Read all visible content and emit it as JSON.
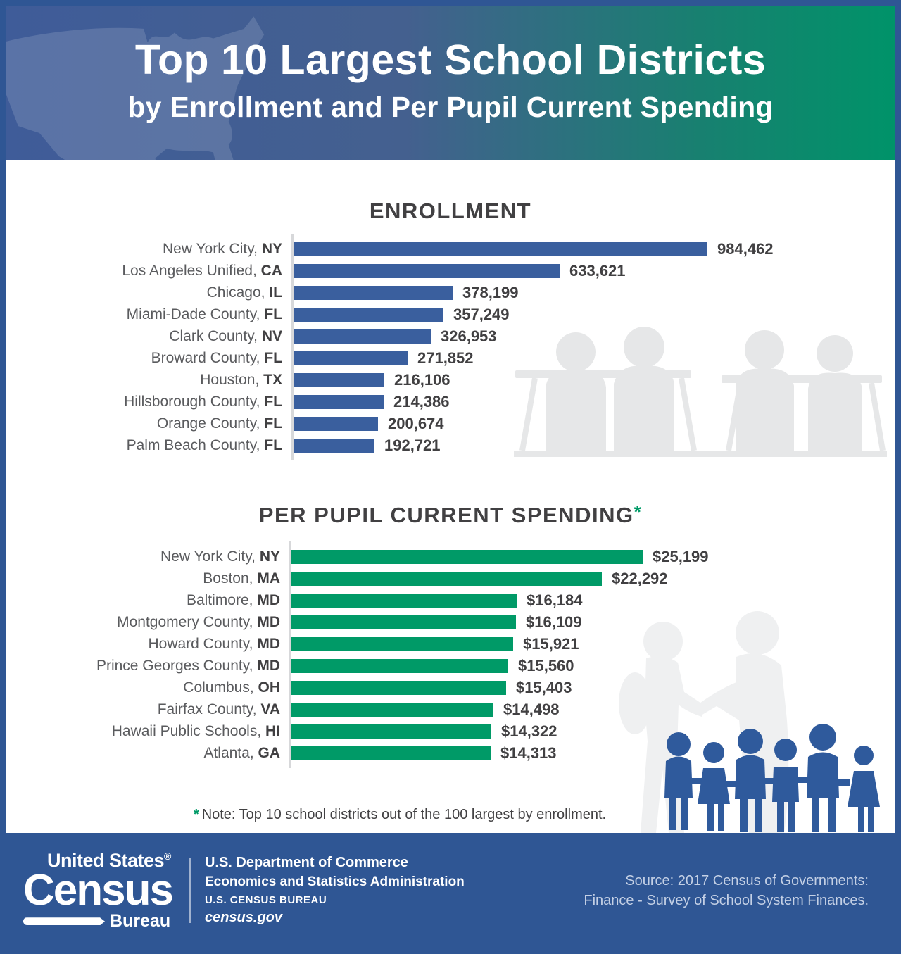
{
  "header": {
    "title": "Top 10 Largest School Districts",
    "subtitle": "by Enrollment and Per Pupil Current Spending"
  },
  "colors": {
    "bar_blue": "#3A5F9E",
    "bar_green": "#009A67",
    "census_blue": "#2F5694",
    "label_gray": "#5A5B5E",
    "dark_text": "#414042",
    "silhouette_gray": "#E6E7E8"
  },
  "chart_data": [
    {
      "type": "bar",
      "orientation": "horizontal",
      "title": "ENROLLMENT",
      "title_suffix": "",
      "categories": [
        {
          "name": "New York City,",
          "state": "NY"
        },
        {
          "name": "Los Angeles Unified,",
          "state": "CA"
        },
        {
          "name": "Chicago,",
          "state": "IL"
        },
        {
          "name": "Miami-Dade County,",
          "state": "FL"
        },
        {
          "name": "Clark County,",
          "state": "NV"
        },
        {
          "name": "Broward County,",
          "state": "FL"
        },
        {
          "name": "Houston,",
          "state": "TX"
        },
        {
          "name": "Hillsborough County,",
          "state": "FL"
        },
        {
          "name": "Orange County,",
          "state": "FL"
        },
        {
          "name": "Palm Beach County,",
          "state": "FL"
        }
      ],
      "values": [
        984462,
        633621,
        378199,
        357249,
        326953,
        271852,
        216106,
        214386,
        200674,
        192721
      ],
      "value_labels": [
        "984,462",
        "633,621",
        "378,199",
        "357,249",
        "326,953",
        "271,852",
        "216,106",
        "214,386",
        "200,674",
        "192,721"
      ],
      "bar_color": "#3A5F9E",
      "xlim": [
        0,
        984462
      ],
      "grid": false,
      "legend": "none"
    },
    {
      "type": "bar",
      "orientation": "horizontal",
      "title": "PER PUPIL CURRENT SPENDING",
      "title_suffix": "*",
      "categories": [
        {
          "name": "New York City,",
          "state": "NY"
        },
        {
          "name": "Boston,",
          "state": "MA"
        },
        {
          "name": "Baltimore,",
          "state": "MD"
        },
        {
          "name": "Montgomery County,",
          "state": "MD"
        },
        {
          "name": "Howard County,",
          "state": "MD"
        },
        {
          "name": "Prince Georges County,",
          "state": "MD"
        },
        {
          "name": "Columbus,",
          "state": "OH"
        },
        {
          "name": "Fairfax County,",
          "state": "VA"
        },
        {
          "name": "Hawaii Public Schools,",
          "state": "HI"
        },
        {
          "name": "Atlanta,",
          "state": "GA"
        }
      ],
      "values": [
        25199,
        22292,
        16184,
        16109,
        15921,
        15560,
        15403,
        14498,
        14322,
        14313
      ],
      "value_labels": [
        "$25,199",
        "$22,292",
        "$16,184",
        "$16,109",
        "$15,921",
        "$15,560",
        "$15,403",
        "$14,498",
        "$14,322",
        "$14,313"
      ],
      "bar_color": "#009A67",
      "xlim": [
        0,
        25199
      ],
      "grid": false,
      "legend": "none"
    }
  ],
  "note": {
    "asterisk": "*",
    "text": "Note: Top 10 school districts out of the 100 largest by enrollment."
  },
  "footer": {
    "logo": {
      "top": "United States",
      "reg": "®",
      "main": "Census",
      "sub": "Bureau"
    },
    "dept_line1": "U.S. Department of Commerce",
    "dept_line2": "Economics and Statistics Administration",
    "dept_line3": "U.S. CENSUS BUREAU",
    "dept_line4": "census.gov",
    "source_line1": "Source: 2017 Census of Governments:",
    "source_line2": "Finance - Survey of School System Finances."
  },
  "decorations": [
    "us-map-silhouette",
    "classroom-students-silhouette",
    "student-adult-silhouette",
    "children-group-silhouette"
  ]
}
